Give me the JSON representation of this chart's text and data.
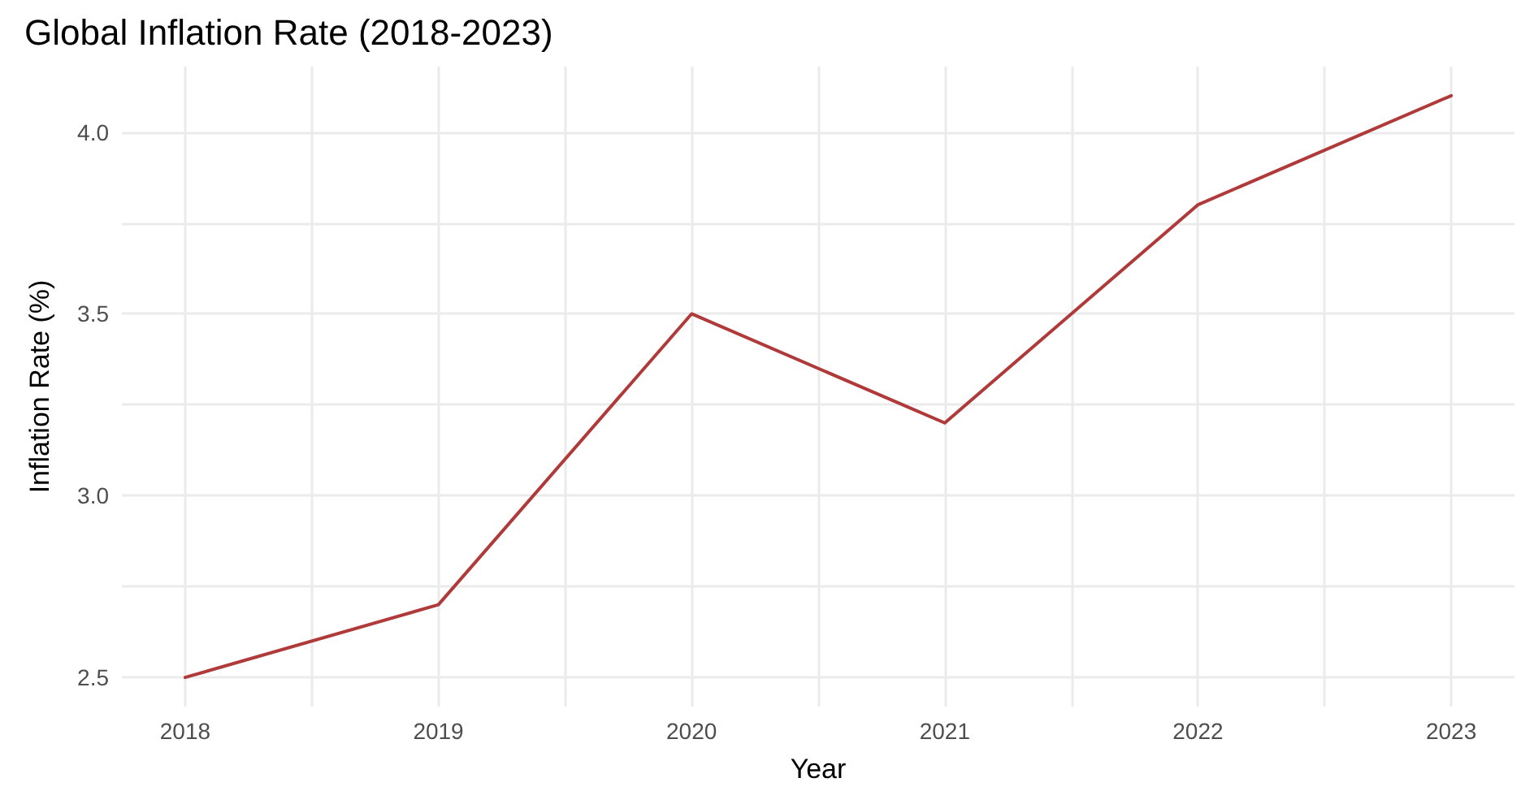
{
  "chart_data": {
    "type": "line",
    "title": "Global Inflation Rate (2018-2023)",
    "xlabel": "Year",
    "ylabel": "Inflation Rate (%)",
    "x": [
      2018,
      2019,
      2020,
      2021,
      2022,
      2023
    ],
    "series": [
      {
        "color": "#b03a3a",
        "values": [
          2.5,
          2.7,
          3.5,
          3.2,
          3.8,
          4.1
        ]
      }
    ],
    "xlim": [
      2017.75,
      2023.25
    ],
    "xticks": [
      2018,
      {
        "value": 2018.5,
        "label": null
      },
      2019,
      {
        "value": 2019.5,
        "label": null
      },
      2020,
      {
        "value": 2020.5,
        "label": null
      },
      2021,
      {
        "value": 2021.5,
        "label": null
      },
      2022,
      {
        "value": 2022.5,
        "label": null
      },
      2023
    ],
    "ylim": [
      2.42,
      4.18
    ],
    "yticks": [
      2.5,
      {
        "value": 2.75,
        "label": null
      },
      {
        "value": 3,
        "label": "3.0"
      },
      {
        "value": 3.25,
        "label": null
      },
      3.5,
      {
        "value": 3.75,
        "label": null
      },
      {
        "value": 4,
        "label": "4.0"
      }
    ],
    "grid": true,
    "marker": "none",
    "line_style": "solid"
  }
}
